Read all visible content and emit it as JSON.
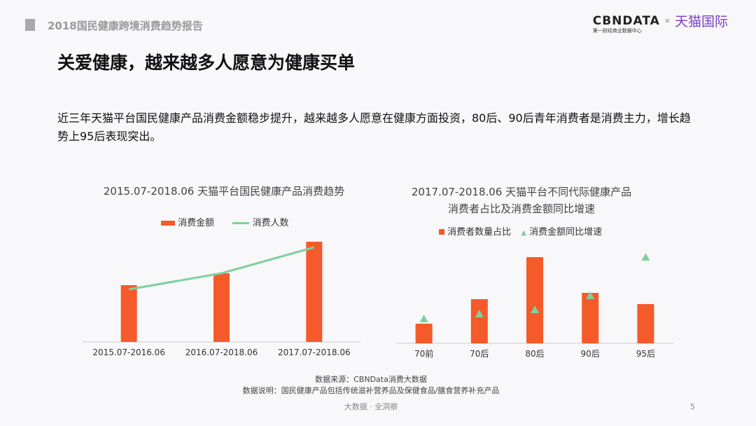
{
  "header": {
    "report_title": "2018国民健康跨境消费趋势报告",
    "logo_cbn": "CBNDATA",
    "logo_cbn_sub": "第一财经商业数据中心",
    "logo_x": "×",
    "logo_tmall": "天猫国际"
  },
  "slide": {
    "title": "关爱健康，越来越多人愿意为健康买单",
    "description": "近三年天猫平台国民健康产品消费金额稳步提升，越来越多人愿意在健康方面投资，80后、90后青年消费者是消费主力，增长趋势上95后表现突出。"
  },
  "colors": {
    "bar": "#f45a2a",
    "line": "#7fd0a0"
  },
  "chart_data": [
    {
      "type": "bar+line",
      "title": "2015.07-2018.06 天猫平台国民健康产品消费趋势",
      "categories": [
        "2015.07-2016.06",
        "2016.07-2018.06",
        "2017.07-2018.06"
      ],
      "series": [
        {
          "name": "消费金额",
          "type": "bar",
          "values": [
            81,
            98,
            143
          ]
        },
        {
          "name": "消费人数",
          "type": "line",
          "values": [
            75,
            98,
            135
          ]
        }
      ],
      "ylim": [
        0,
        150
      ],
      "axis_values_shown": false,
      "legend": "top",
      "grid": false
    },
    {
      "type": "bar+scatter",
      "title_line1": "2017.07-2018.06 天猫平台不同代际健康产品",
      "title_line2": "消费者占比及消费金额同比增速",
      "categories": [
        "70前",
        "70后",
        "80后",
        "90后",
        "95后"
      ],
      "series": [
        {
          "name": "消费者数量占比",
          "type": "bar",
          "values": [
            28,
            63,
            123,
            72,
            56
          ]
        },
        {
          "name": "消费金额同比增速",
          "type": "scatter",
          "marker": "triangle",
          "values": [
            35,
            42,
            48,
            68,
            123
          ]
        }
      ],
      "ylim": [
        0,
        130
      ],
      "axis_values_shown": false,
      "legend": "top",
      "grid": false
    }
  ],
  "footer": {
    "source": "数据来源：CBNData消费大数据",
    "note": "数据说明：国民健康产品包括传统滋补营养品及保健食品/膳食营养补充产品",
    "slogan": "大数据 · 全洞察",
    "page": "5"
  }
}
